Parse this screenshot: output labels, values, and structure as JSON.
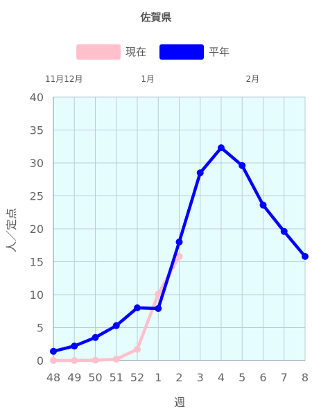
{
  "chart_data": {
    "type": "line",
    "title": "佐賀県",
    "xlabel": "週",
    "ylabel": "人／定点",
    "ylim": [
      0,
      40
    ],
    "y_ticks": [
      0,
      5,
      10,
      15,
      20,
      25,
      30,
      35,
      40
    ],
    "categories": [
      "48",
      "49",
      "50",
      "51",
      "52",
      "1",
      "2",
      "3",
      "4",
      "5",
      "6",
      "7",
      "8"
    ],
    "month_labels": [
      {
        "label": "11月12月",
        "category": "49"
      },
      {
        "label": "1月",
        "category": "1"
      },
      {
        "label": "2月",
        "category": "6"
      }
    ],
    "series": [
      {
        "name": "現在",
        "color": "#ffc0cb",
        "values": [
          0.0,
          0.0,
          0.05,
          0.2,
          1.7,
          10.1,
          15.8,
          null,
          null,
          null,
          null,
          null,
          null
        ]
      },
      {
        "name": "平年",
        "color": "#0000ff",
        "values": [
          1.4,
          2.2,
          3.5,
          5.3,
          8.0,
          7.9,
          18.0,
          28.5,
          32.3,
          29.6,
          23.6,
          19.6,
          15.8
        ]
      }
    ],
    "legend_position": "top",
    "grid": true,
    "plot_background": "#e6fdfe"
  }
}
